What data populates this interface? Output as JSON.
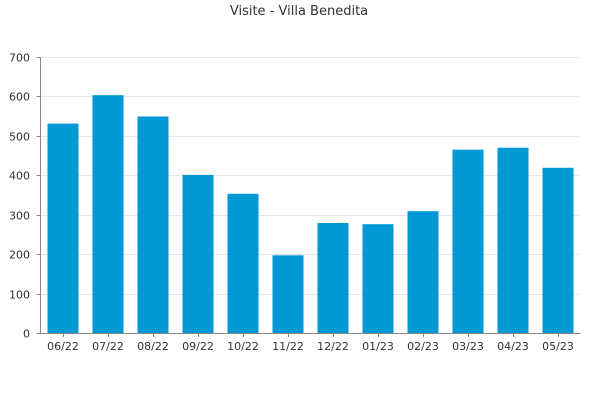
{
  "chart_data": {
    "type": "bar",
    "title": "Visite - Villa Benedita",
    "xlabel": "",
    "ylabel": "",
    "categories": [
      "06/22",
      "07/22",
      "08/22",
      "09/22",
      "10/22",
      "11/22",
      "12/22",
      "01/23",
      "02/23",
      "03/23",
      "04/23",
      "05/23"
    ],
    "values": [
      531,
      603,
      549,
      401,
      353,
      197,
      279,
      276,
      309,
      465,
      470,
      419
    ],
    "ylim": [
      0,
      700
    ],
    "yticks": [
      "0",
      "100",
      "200",
      "300",
      "400",
      "500",
      "600",
      "700"
    ],
    "grid": true,
    "legend": "none",
    "bar_color": "#0099D6",
    "grid_color": "#E6E6E6",
    "axis_color": "#888888"
  }
}
